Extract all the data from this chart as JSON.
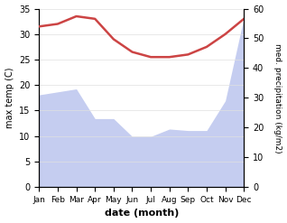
{
  "months": [
    "Jan",
    "Feb",
    "Mar",
    "Apr",
    "May",
    "Jun",
    "Jul",
    "Aug",
    "Sep",
    "Oct",
    "Nov",
    "Dec"
  ],
  "temperature": [
    31.5,
    32.0,
    33.5,
    33.0,
    29.0,
    26.5,
    25.5,
    25.5,
    26.0,
    27.5,
    30.0,
    33.0
  ],
  "precipitation": [
    31.0,
    32.0,
    33.0,
    23.0,
    23.0,
    17.0,
    17.0,
    19.5,
    19.0,
    19.0,
    29.0,
    57.0
  ],
  "temp_color": "#cc4444",
  "precip_fill_color": "#c5cdf0",
  "temp_ylim": [
    0,
    35
  ],
  "precip_ylim": [
    0,
    60
  ],
  "xlabel": "date (month)",
  "ylabel_left": "max temp (C)",
  "ylabel_right": "med. precipitation (kg/m2)",
  "bg_color": "#ffffff",
  "temp_linewidth": 1.8,
  "yticks_left": [
    0,
    5,
    10,
    15,
    20,
    25,
    30,
    35
  ],
  "yticks_right": [
    0,
    10,
    20,
    30,
    40,
    50,
    60
  ]
}
